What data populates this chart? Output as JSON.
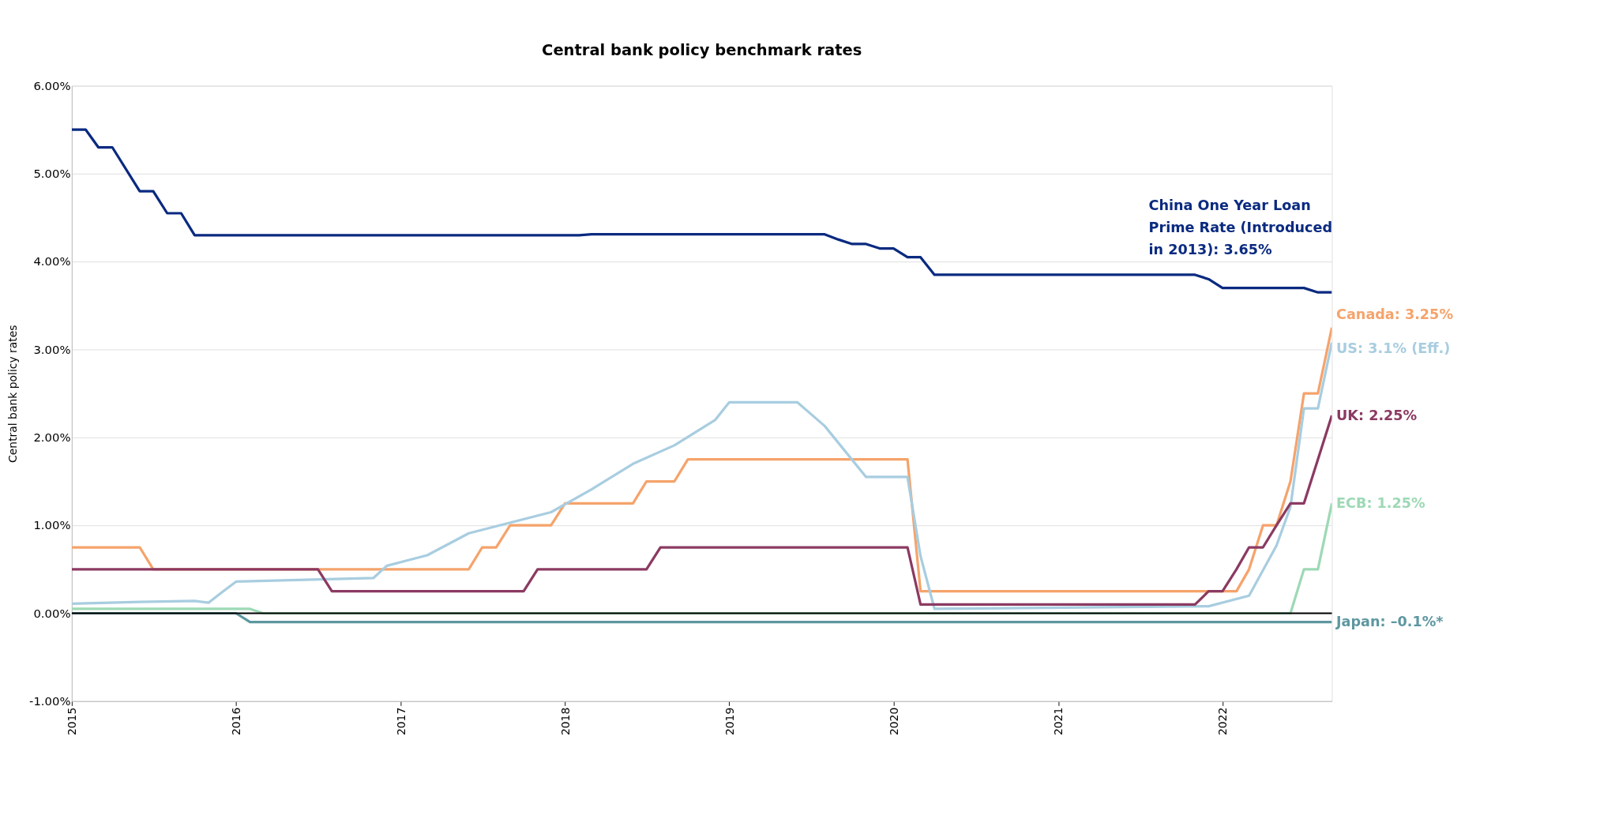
{
  "chart_data": {
    "type": "line",
    "title": "Central bank policy benchmark rates",
    "ylabel": "Central bank policy rates",
    "xlim": [
      "2015-01",
      "2022-09"
    ],
    "xticks": [
      "2015",
      "2016",
      "2017",
      "2018",
      "2019",
      "2020",
      "2021",
      "2022"
    ],
    "ylim": [
      -1,
      6
    ],
    "yticks": [
      {
        "value": -1,
        "label": "-1.00%"
      },
      {
        "value": 0,
        "label": "0.00%"
      },
      {
        "value": 1,
        "label": "1.00%"
      },
      {
        "value": 2,
        "label": "2.00%"
      },
      {
        "value": 3,
        "label": "3.00%"
      },
      {
        "value": 4,
        "label": "4.00%"
      },
      {
        "value": 5,
        "label": "5.00%"
      },
      {
        "value": 6,
        "label": "6.00%"
      }
    ],
    "grid": "y",
    "legend": false,
    "line_style": "solid",
    "marker": "none",
    "ref_lines": [
      {
        "axis": "y",
        "value": 0,
        "color": "#000000"
      }
    ],
    "series": [
      {
        "name": "China One Year Loan Prime Rate (Introduced in 2013): 3.65%",
        "color": "#0a2a80",
        "x": [
          "2015-01",
          "2015-02",
          "2015-03",
          "2015-04",
          "2015-06",
          "2015-07",
          "2015-08",
          "2015-09",
          "2015-10",
          "2018-02",
          "2018-03",
          "2019-08",
          "2019-09",
          "2019-10",
          "2019-11",
          "2019-12",
          "2020-01",
          "2020-02",
          "2020-03",
          "2020-04",
          "2021-11",
          "2021-12",
          "2022-01",
          "2022-07",
          "2022-08",
          "2022-09"
        ],
        "values": [
          5.5,
          5.5,
          5.3,
          5.3,
          4.8,
          4.8,
          4.55,
          4.55,
          4.3,
          4.3,
          4.31,
          4.31,
          4.25,
          4.2,
          4.2,
          4.15,
          4.15,
          4.05,
          4.05,
          3.85,
          3.85,
          3.8,
          3.7,
          3.7,
          3.65,
          3.65
        ]
      },
      {
        "name": "Canada: 3.25%",
        "color": "#f5a36b",
        "x": [
          "2015-01",
          "2015-06",
          "2015-07",
          "2017-06",
          "2017-07",
          "2017-08",
          "2017-09",
          "2017-12",
          "2018-01",
          "2018-06",
          "2018-07",
          "2018-09",
          "2018-10",
          "2020-02",
          "2020-03",
          "2022-02",
          "2022-03",
          "2022-04",
          "2022-05",
          "2022-06",
          "2022-07",
          "2022-08",
          "2022-09"
        ],
        "values": [
          0.75,
          0.75,
          0.5,
          0.5,
          0.75,
          0.75,
          1.0,
          1.0,
          1.25,
          1.25,
          1.5,
          1.5,
          1.75,
          1.75,
          0.25,
          0.25,
          0.5,
          1.0,
          1.0,
          1.5,
          2.5,
          2.5,
          3.25
        ]
      },
      {
        "name": "US: 3.1% (Eff.)",
        "color": "#a8cde0",
        "x": [
          "2015-01",
          "2015-06",
          "2015-10",
          "2015-11",
          "2015-12",
          "2016-01",
          "2016-06",
          "2016-11",
          "2016-12",
          "2017-03",
          "2017-06",
          "2017-12",
          "2018-03",
          "2018-06",
          "2018-09",
          "2018-12",
          "2019-01",
          "2019-06",
          "2019-08",
          "2019-11",
          "2020-02",
          "2020-03",
          "2020-04",
          "2021-12",
          "2022-03",
          "2022-05",
          "2022-06",
          "2022-07",
          "2022-08",
          "2022-09"
        ],
        "values": [
          0.11,
          0.13,
          0.14,
          0.12,
          0.24,
          0.36,
          0.38,
          0.4,
          0.54,
          0.66,
          0.91,
          1.15,
          1.41,
          1.7,
          1.91,
          2.2,
          2.4,
          2.4,
          2.13,
          1.55,
          1.55,
          0.65,
          0.05,
          0.08,
          0.2,
          0.77,
          1.21,
          2.33,
          2.33,
          3.08
        ]
      },
      {
        "name": "UK: 2.25%",
        "color": "#8b3a62",
        "x": [
          "2015-01",
          "2016-07",
          "2016-08",
          "2017-10",
          "2017-11",
          "2018-07",
          "2018-08",
          "2020-02",
          "2020-03",
          "2021-11",
          "2021-12",
          "2022-01",
          "2022-02",
          "2022-03",
          "2022-04",
          "2022-05",
          "2022-06",
          "2022-07",
          "2022-08",
          "2022-09"
        ],
        "values": [
          0.5,
          0.5,
          0.25,
          0.25,
          0.5,
          0.5,
          0.75,
          0.75,
          0.1,
          0.1,
          0.25,
          0.25,
          0.5,
          0.75,
          0.75,
          1.0,
          1.25,
          1.25,
          1.75,
          2.25
        ]
      },
      {
        "name": "ECB: 1.25%",
        "color": "#9dd9b5",
        "x": [
          "2015-01",
          "2016-02",
          "2016-03",
          "2022-06",
          "2022-07",
          "2022-08",
          "2022-09"
        ],
        "values": [
          0.05,
          0.05,
          0.0,
          0.0,
          0.5,
          0.5,
          1.25
        ]
      },
      {
        "name": "Japan: –0.1%*",
        "color": "#5e97a0",
        "x": [
          "2015-01",
          "2016-01",
          "2016-02",
          "2022-09"
        ],
        "values": [
          0.0,
          0.0,
          -0.1,
          -0.1
        ]
      }
    ]
  }
}
